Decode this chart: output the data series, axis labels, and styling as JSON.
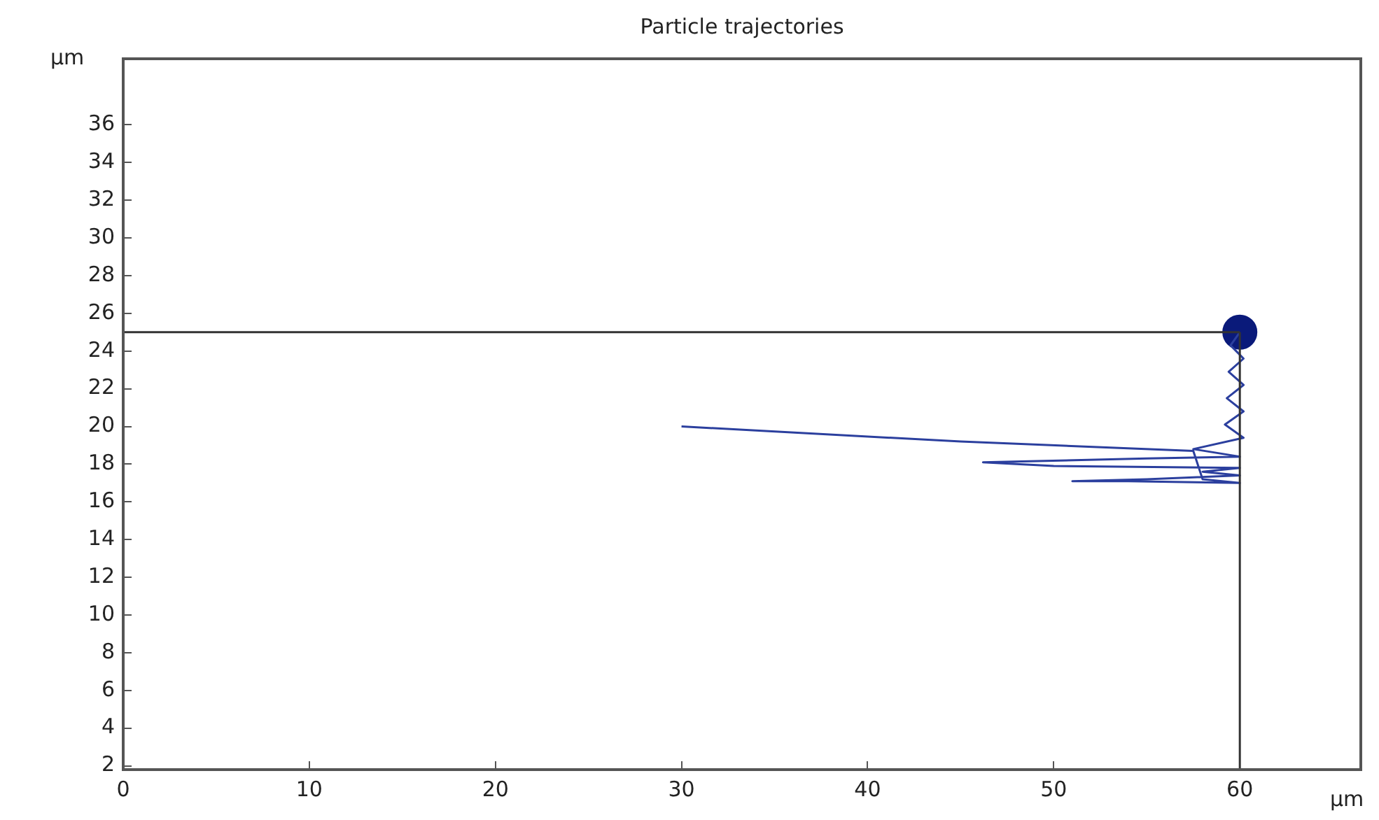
{
  "chart_data": {
    "type": "line",
    "title": "Particle trajectories",
    "xlabel": "μm",
    "ylabel": "μm",
    "xlim": [
      0,
      66.5
    ],
    "ylim": [
      1.8,
      39.5
    ],
    "xticks": [
      0,
      10,
      20,
      30,
      40,
      50,
      60
    ],
    "yticks": [
      2,
      4,
      6,
      8,
      10,
      12,
      14,
      16,
      18,
      20,
      22,
      24,
      26,
      28,
      30,
      32,
      34,
      36
    ],
    "grid": false,
    "legend": false,
    "marker": "none",
    "line_style": "solid",
    "series": [
      {
        "type": "line",
        "color": "#333333",
        "x": [
          0,
          60
        ],
        "values": [
          25,
          25
        ]
      },
      {
        "type": "line",
        "color": "#333333",
        "x": [
          60,
          60
        ],
        "values": [
          1.8,
          25
        ]
      },
      {
        "type": "line",
        "color": "#2b3f9e",
        "x": [
          60,
          59.5,
          60.2,
          59.4,
          60.2,
          59.3,
          60.2,
          59.2,
          60.2,
          57.5,
          60,
          55,
          46.2,
          50,
          60,
          58,
          60,
          55,
          51,
          54,
          60,
          58,
          57.5,
          45,
          30
        ],
        "values": [
          25,
          24.3,
          23.6,
          22.9,
          22.2,
          21.5,
          20.8,
          20.1,
          19.4,
          18.8,
          18.4,
          18.3,
          18.1,
          17.9,
          17.8,
          17.6,
          17.4,
          17.2,
          17.1,
          17.1,
          17,
          17.2,
          18.7,
          19.2,
          20
        ]
      },
      {
        "type": "scatter",
        "color": "#0a1a7a",
        "marker": "circle",
        "x": [
          60
        ],
        "values": [
          25
        ]
      }
    ]
  }
}
